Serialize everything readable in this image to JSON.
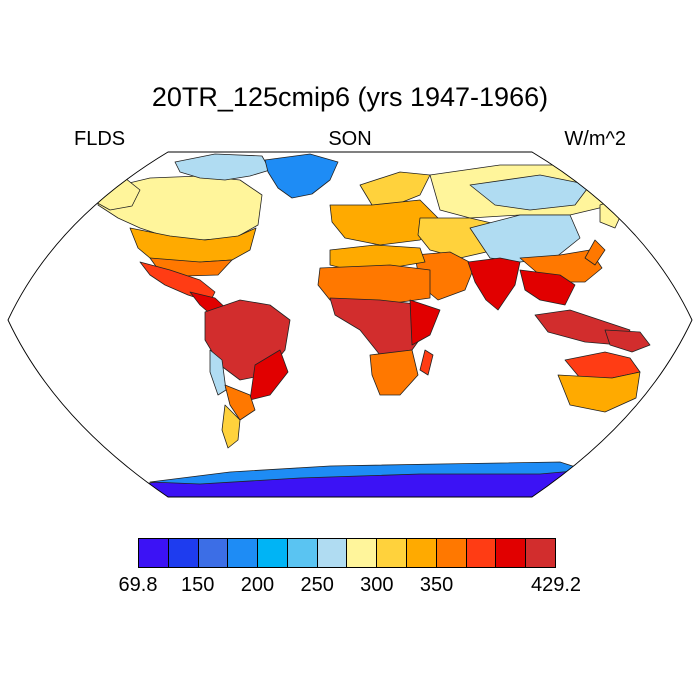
{
  "title": "20TR_125cmip6 (yrs 1947-1966)",
  "subtitle_left": "FLDS",
  "subtitle_center": "SON",
  "subtitle_right": "W/m^2",
  "map": {
    "projection": "Robinson",
    "variable": "FLDS",
    "season": "SON",
    "regions": [
      {
        "name": "Canadian Arctic",
        "level": "200-250"
      },
      {
        "name": "Greenland",
        "level": "150-200"
      },
      {
        "name": "Alaska",
        "level": "250-275"
      },
      {
        "name": "Canada",
        "level": "275-300"
      },
      {
        "name": "United States",
        "level": "300-350"
      },
      {
        "name": "Central America",
        "level": "375-400"
      },
      {
        "name": "Amazon",
        "level": "400-429.2"
      },
      {
        "name": "Andes",
        "level": "250-300"
      },
      {
        "name": "Patagonia",
        "level": "275-325"
      },
      {
        "name": "Europe",
        "level": "300-325"
      },
      {
        "name": "Sahara",
        "level": "350-375"
      },
      {
        "name": "Central Africa",
        "level": "400-429.2"
      },
      {
        "name": "Southern Africa",
        "level": "350-375"
      },
      {
        "name": "Middle East",
        "level": "350-375"
      },
      {
        "name": "Siberia",
        "level": "250-275"
      },
      {
        "name": "Tibetan Plateau",
        "level": "200-250"
      },
      {
        "name": "India",
        "level": "400-429.2"
      },
      {
        "name": "Southeast Asia",
        "level": "400-429.2"
      },
      {
        "name": "Maritime Continent",
        "level": "400-429.2"
      },
      {
        "name": "Australia",
        "level": "325-375"
      },
      {
        "name": "New Zealand",
        "level": "325-350"
      },
      {
        "name": "Antarctica",
        "level": "69.8-150"
      }
    ]
  },
  "colorbar": {
    "colors": [
      "#3c12f5",
      "#1e3cef",
      "#3c6ee6",
      "#1e8cf5",
      "#00b4f5",
      "#5ac4f2",
      "#b0dcf2",
      "#fff59b",
      "#ffd23c",
      "#ffaa00",
      "#ff7800",
      "#ff3c14",
      "#e10000",
      "#d22d2d"
    ],
    "ticks": [
      {
        "value": 69.8,
        "label": "69.8"
      },
      {
        "value": 150,
        "label": "150"
      },
      {
        "value": 200,
        "label": "200"
      },
      {
        "value": 250,
        "label": "250"
      },
      {
        "value": 300,
        "label": "300"
      },
      {
        "value": 350,
        "label": "350"
      },
      {
        "value": 429.2,
        "label": "429.2"
      }
    ]
  }
}
